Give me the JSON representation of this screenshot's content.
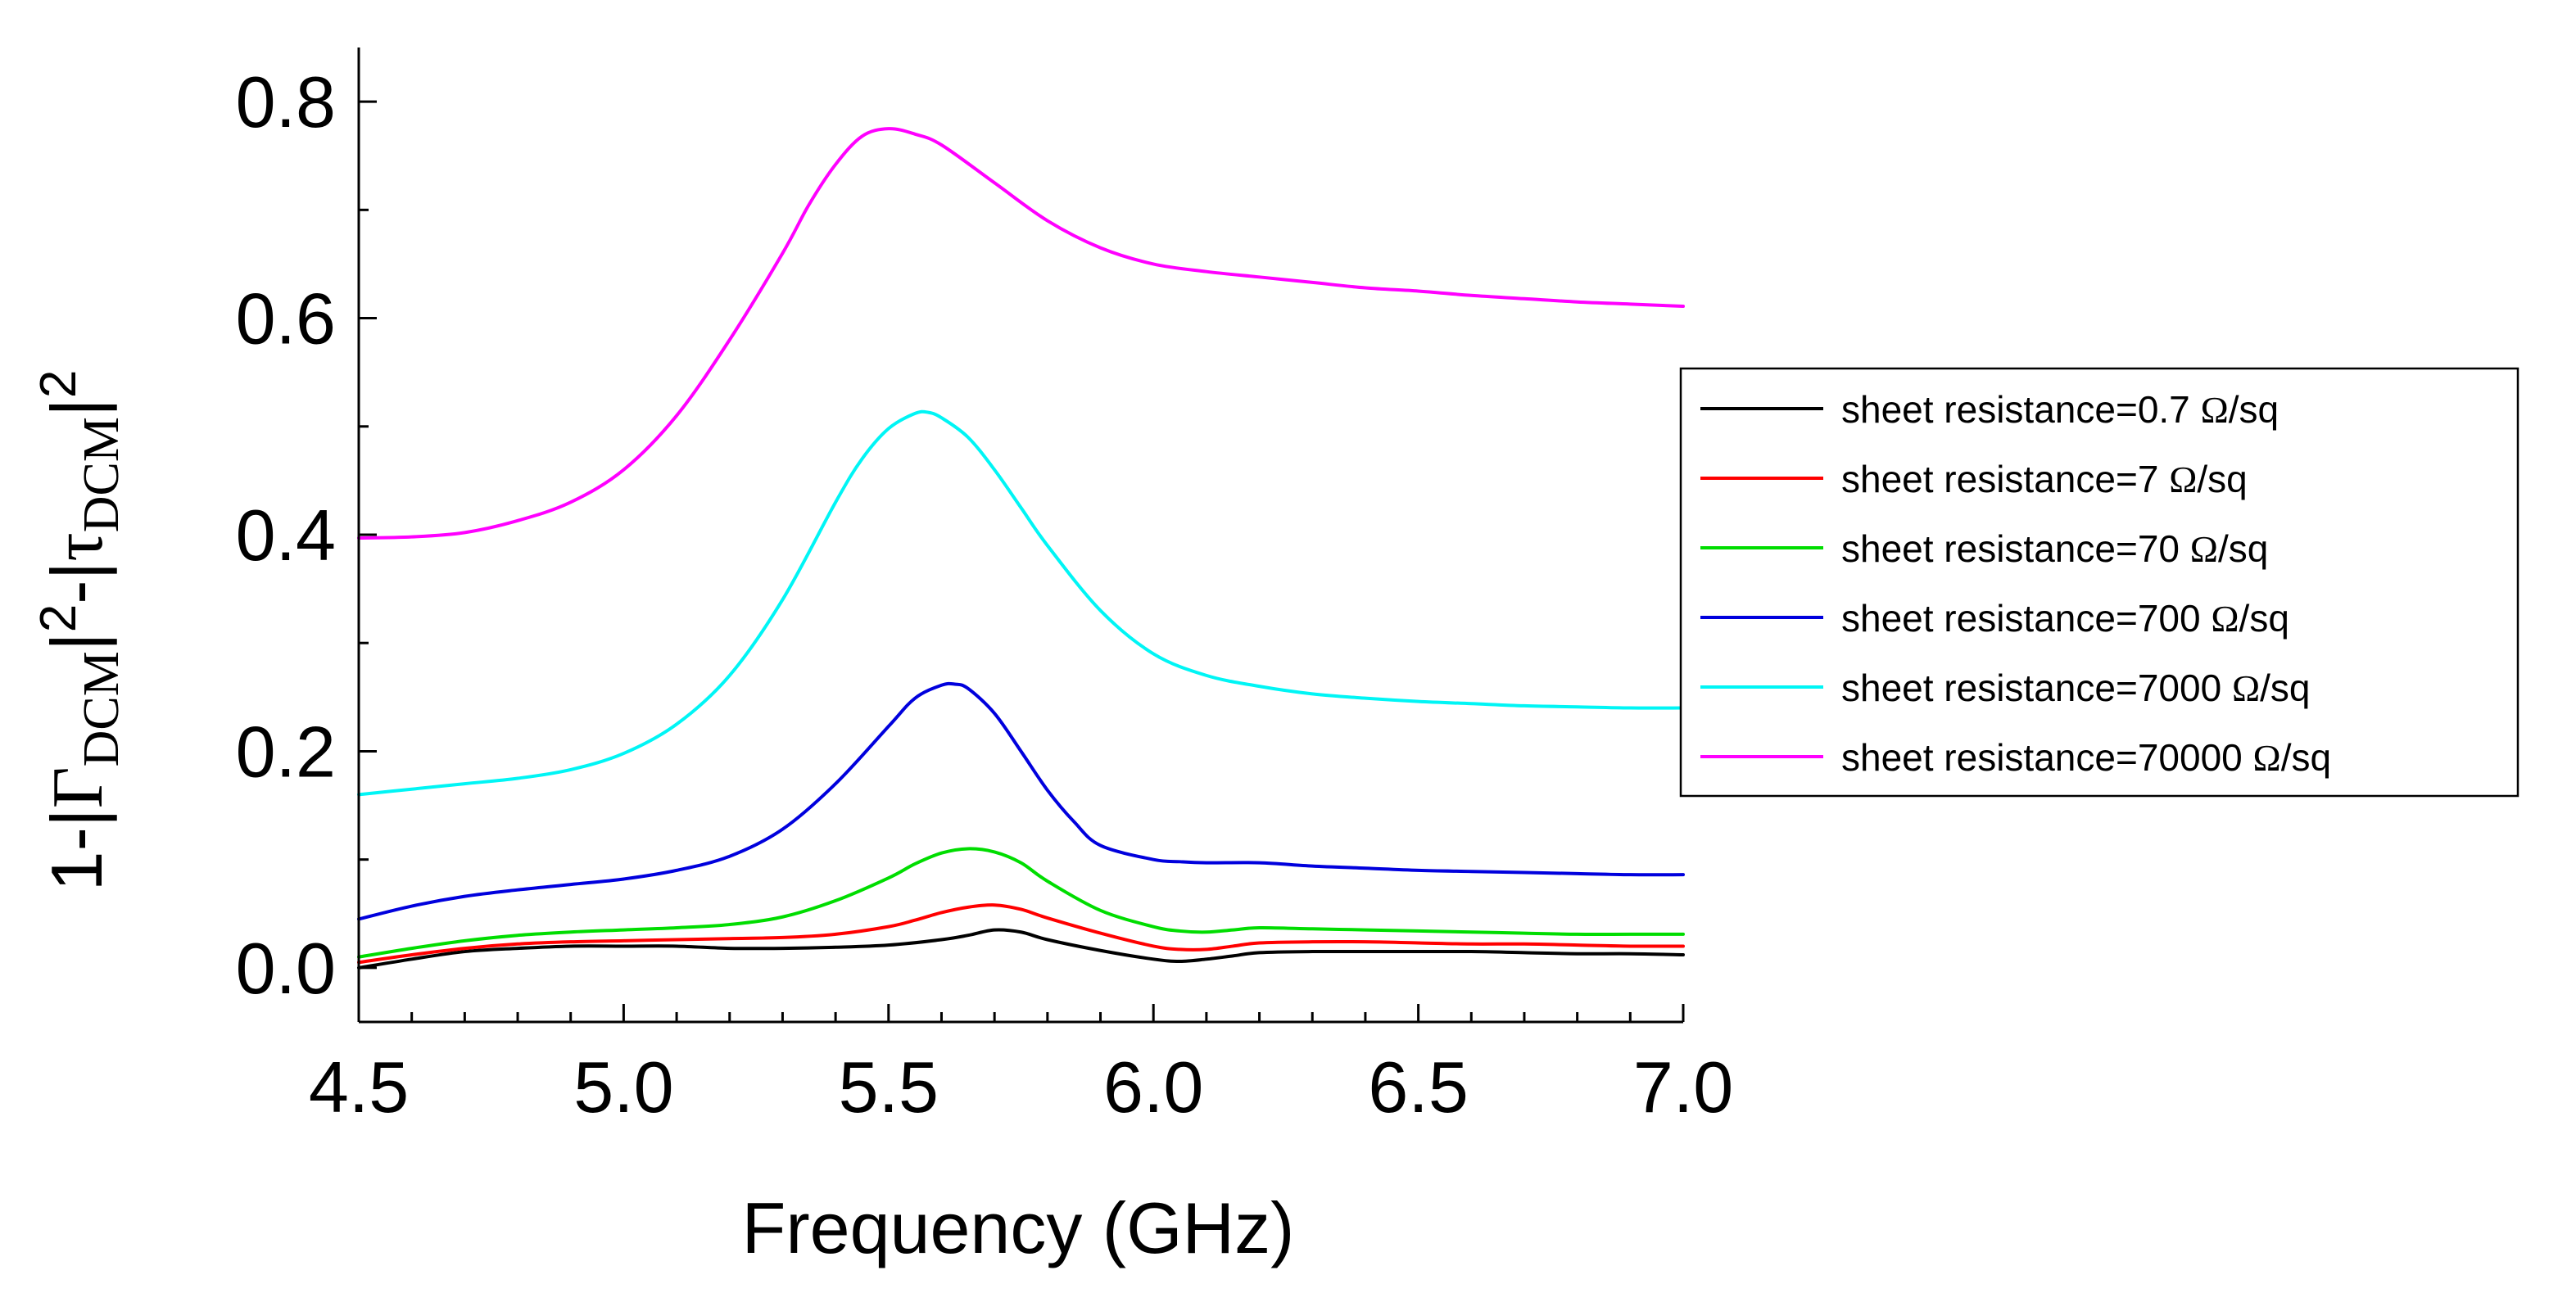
{
  "chart_data": {
    "type": "line",
    "xlabel": "Frequency (GHz)",
    "ylabel": {
      "prefix": "1-|",
      "gamma": "Γ",
      "sub1": "DCM",
      "mid_bar": "|",
      "sup1": "2",
      "minus_bar": "-|",
      "tau": "τ",
      "sub2": "DCM",
      "end_bar": "|",
      "sup2": "2"
    },
    "xlim": [
      4.5,
      7.0
    ],
    "ylim": [
      -0.05,
      0.85
    ],
    "x_ticks": [
      4.5,
      5.0,
      5.5,
      6.0,
      6.5,
      7.0
    ],
    "x_tick_labels": [
      "4.5",
      "5.0",
      "5.5",
      "6.0",
      "6.5",
      "7.0"
    ],
    "y_ticks": [
      0.0,
      0.2,
      0.4,
      0.6,
      0.8
    ],
    "y_tick_labels": [
      "0.0",
      "0.2",
      "0.4",
      "0.6",
      "0.8"
    ],
    "grid": false,
    "legend_position": "right",
    "series": [
      {
        "label_text": "sheet resistance=0.7 ",
        "label_unit_symbol": "Ω",
        "label_unit_rest": "/sq",
        "color": "#000000",
        "x": [
          4.5,
          4.6,
          4.7,
          4.8,
          4.9,
          5.0,
          5.1,
          5.2,
          5.3,
          5.4,
          5.5,
          5.6,
          5.65,
          5.7,
          5.75,
          5.8,
          5.9,
          6.0,
          6.05,
          6.1,
          6.15,
          6.2,
          6.3,
          6.4,
          6.5,
          6.6,
          6.7,
          6.8,
          6.9,
          7.0
        ],
        "y": [
          0.0,
          0.008,
          0.015,
          0.018,
          0.02,
          0.02,
          0.02,
          0.018,
          0.018,
          0.019,
          0.021,
          0.026,
          0.03,
          0.035,
          0.033,
          0.026,
          0.016,
          0.008,
          0.006,
          0.008,
          0.011,
          0.014,
          0.015,
          0.015,
          0.015,
          0.015,
          0.014,
          0.013,
          0.013,
          0.012
        ]
      },
      {
        "label_text": "sheet resistance=7 ",
        "label_unit_symbol": "Ω",
        "label_unit_rest": "/sq",
        "color": "#ff0000",
        "x": [
          4.5,
          4.6,
          4.7,
          4.8,
          4.9,
          5.0,
          5.1,
          5.2,
          5.3,
          5.4,
          5.5,
          5.55,
          5.6,
          5.65,
          5.7,
          5.75,
          5.8,
          5.9,
          6.0,
          6.05,
          6.1,
          6.15,
          6.2,
          6.3,
          6.4,
          6.5,
          6.6,
          6.7,
          6.8,
          6.9,
          7.0
        ],
        "y": [
          0.005,
          0.012,
          0.018,
          0.022,
          0.024,
          0.025,
          0.026,
          0.027,
          0.028,
          0.031,
          0.038,
          0.044,
          0.051,
          0.056,
          0.058,
          0.054,
          0.046,
          0.032,
          0.02,
          0.017,
          0.017,
          0.02,
          0.023,
          0.024,
          0.024,
          0.023,
          0.022,
          0.022,
          0.021,
          0.02,
          0.02
        ]
      },
      {
        "label_text": "sheet resistance=70 ",
        "label_unit_symbol": "Ω",
        "label_unit_rest": "/sq",
        "color": "#00dd00",
        "x": [
          4.5,
          4.6,
          4.7,
          4.8,
          4.9,
          5.0,
          5.1,
          5.2,
          5.3,
          5.4,
          5.5,
          5.55,
          5.6,
          5.65,
          5.7,
          5.75,
          5.8,
          5.9,
          6.0,
          6.05,
          6.1,
          6.15,
          6.2,
          6.3,
          6.4,
          6.5,
          6.6,
          6.7,
          6.8,
          6.9,
          7.0
        ],
        "y": [
          0.01,
          0.018,
          0.025,
          0.03,
          0.033,
          0.035,
          0.037,
          0.04,
          0.047,
          0.062,
          0.083,
          0.096,
          0.106,
          0.11,
          0.107,
          0.097,
          0.08,
          0.053,
          0.038,
          0.034,
          0.033,
          0.035,
          0.037,
          0.036,
          0.035,
          0.034,
          0.033,
          0.032,
          0.031,
          0.031,
          0.031
        ]
      },
      {
        "label_text": "sheet resistance=700 ",
        "label_unit_symbol": "Ω",
        "label_unit_rest": "/sq",
        "color": "#0000dd",
        "x": [
          4.5,
          4.6,
          4.7,
          4.8,
          4.9,
          5.0,
          5.1,
          5.2,
          5.3,
          5.4,
          5.5,
          5.55,
          5.6,
          5.625,
          5.65,
          5.7,
          5.75,
          5.8,
          5.85,
          5.9,
          6.0,
          6.05,
          6.1,
          6.2,
          6.3,
          6.4,
          6.5,
          6.6,
          6.7,
          6.8,
          6.9,
          7.0
        ],
        "y": [
          0.045,
          0.057,
          0.066,
          0.072,
          0.077,
          0.082,
          0.09,
          0.103,
          0.128,
          0.17,
          0.223,
          0.249,
          0.261,
          0.262,
          0.258,
          0.235,
          0.2,
          0.164,
          0.135,
          0.113,
          0.1,
          0.098,
          0.097,
          0.097,
          0.094,
          0.092,
          0.09,
          0.089,
          0.088,
          0.087,
          0.086,
          0.086
        ]
      },
      {
        "label_text": "sheet resistance=7000 ",
        "label_unit_symbol": "Ω",
        "label_unit_rest": "/sq",
        "color": "#00f5f5",
        "x": [
          4.5,
          4.6,
          4.7,
          4.8,
          4.9,
          5.0,
          5.1,
          5.2,
          5.3,
          5.4,
          5.45,
          5.5,
          5.55,
          5.575,
          5.6,
          5.65,
          5.7,
          5.75,
          5.8,
          5.9,
          6.0,
          6.1,
          6.2,
          6.3,
          6.4,
          6.5,
          6.6,
          6.7,
          6.8,
          6.9,
          7.0
        ],
        "y": [
          0.16,
          0.165,
          0.17,
          0.175,
          0.183,
          0.198,
          0.225,
          0.27,
          0.34,
          0.43,
          0.47,
          0.498,
          0.512,
          0.513,
          0.508,
          0.49,
          0.46,
          0.425,
          0.39,
          0.33,
          0.29,
          0.27,
          0.26,
          0.253,
          0.249,
          0.246,
          0.244,
          0.242,
          0.241,
          0.24,
          0.24
        ]
      },
      {
        "label_text": "sheet resistance=70000 ",
        "label_unit_symbol": "Ω",
        "label_unit_rest": "/sq",
        "color": "#ff00ff",
        "x": [
          4.5,
          4.6,
          4.7,
          4.8,
          4.9,
          5.0,
          5.1,
          5.2,
          5.3,
          5.35,
          5.4,
          5.45,
          5.5,
          5.55,
          5.6,
          5.7,
          5.8,
          5.9,
          6.0,
          6.1,
          6.2,
          6.3,
          6.4,
          6.5,
          6.6,
          6.7,
          6.8,
          6.9,
          7.0
        ],
        "y": [
          0.397,
          0.398,
          0.402,
          0.413,
          0.43,
          0.46,
          0.51,
          0.58,
          0.66,
          0.705,
          0.742,
          0.768,
          0.775,
          0.77,
          0.76,
          0.725,
          0.69,
          0.665,
          0.65,
          0.643,
          0.638,
          0.633,
          0.628,
          0.625,
          0.621,
          0.618,
          0.615,
          0.613,
          0.611
        ]
      }
    ]
  }
}
